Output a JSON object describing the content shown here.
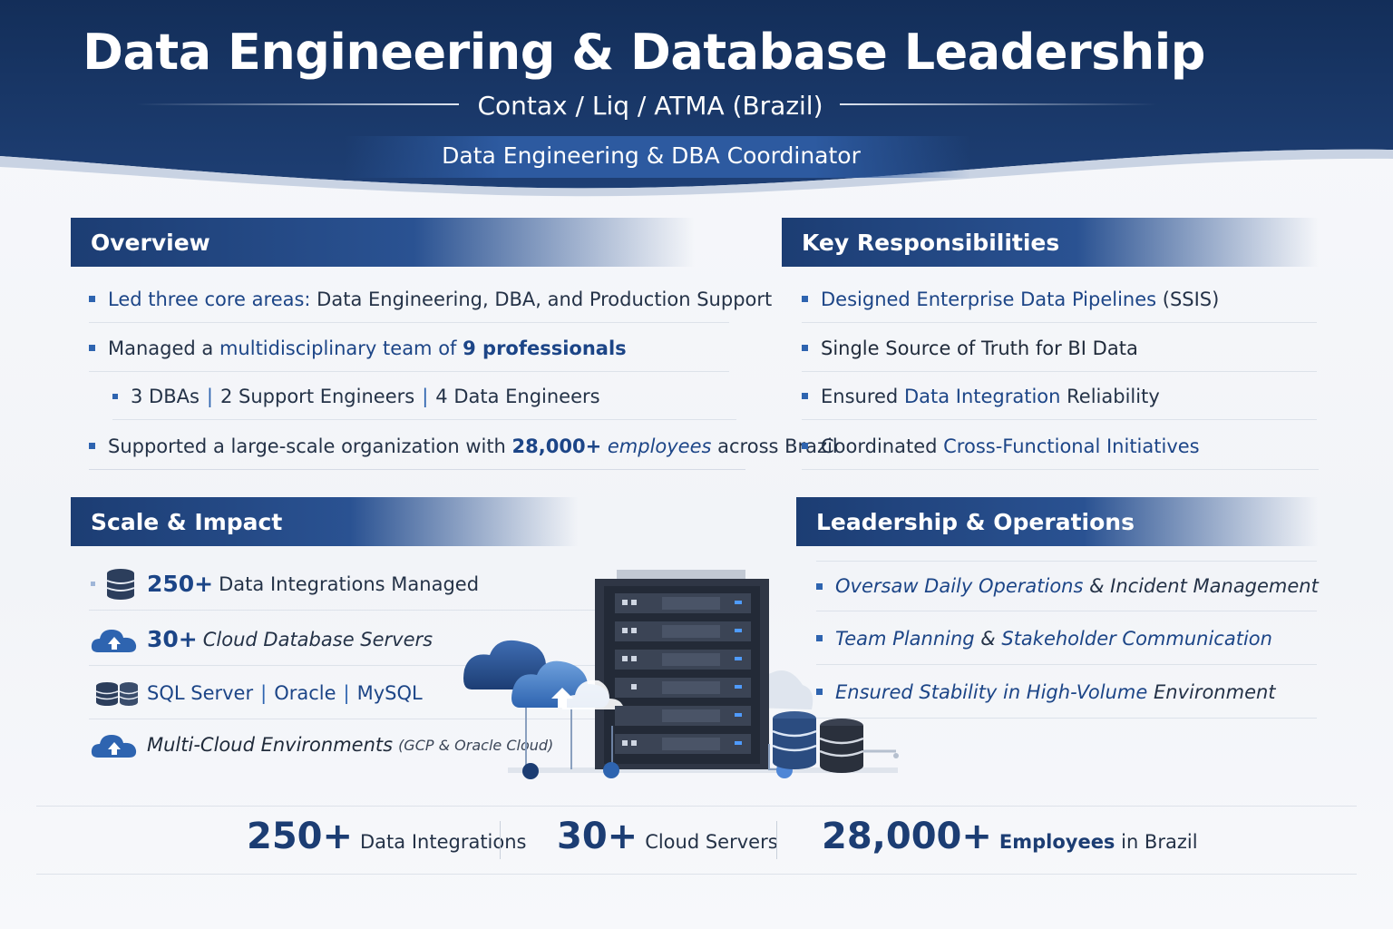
{
  "header": {
    "title": "Data Engineering & Database Leadership",
    "subtitle": "Contax / Liq / ATMA (Brazil)",
    "role": "Data Engineering & DBA Coordinator"
  },
  "overview": {
    "title": "Overview",
    "row1": {
      "lead": "Led three core areas:",
      "rest": " Data Engineering, DBA, and Production Support"
    },
    "row2": {
      "pre": "Managed a ",
      "mid": "multidisciplinary team of ",
      "bold": "9 professionals"
    },
    "row3": {
      "a": "3 DBAs",
      "b": "2 Support Engineers",
      "c": "4 Data Engineers"
    },
    "row4": {
      "pre": "Supported a large-scale organization with ",
      "num": "28,000+",
      "mid": " employees",
      "post": " across Brazil"
    }
  },
  "responsibilities": {
    "title": "Key Responsibilities",
    "items": [
      {
        "bold": "Designed Enterprise Data Pipelines",
        "rest": " (SSIS)"
      },
      {
        "pre": "",
        "bold": "Single Source of Truth for BI Data",
        "rest": ""
      },
      {
        "pre": "Ensured ",
        "bold": "Data Integration",
        "rest": " Reliability"
      },
      {
        "pre": "Coordinated ",
        "bold": "Cross-Functional Initiatives",
        "rest": ""
      }
    ]
  },
  "scale": {
    "title": "Scale & Impact",
    "row1": {
      "num": "250+",
      "text": "Data Integrations Managed"
    },
    "row2": {
      "num": "30+",
      "text": "Cloud Database Servers"
    },
    "row3": {
      "a": "SQL Server",
      "b": "Oracle",
      "c": "MySQL"
    },
    "row4": {
      "text": "Multi-Cloud Environments",
      "sub": "(GCP & Oracle Cloud)"
    }
  },
  "leadership": {
    "title": "Leadership & Operations",
    "items": [
      {
        "bold": "Oversaw Daily Operations",
        "rest": " & Incident Management"
      },
      {
        "bold": "Team Planning",
        "mid": " & ",
        "bold2": "Stakeholder Communication"
      },
      {
        "bold": "Ensured Stability in High-Volume",
        "rest": " Environment"
      }
    ]
  },
  "stats": [
    {
      "num": "250+",
      "label": "Data Integrations"
    },
    {
      "num": "30+",
      "label": "Cloud Servers"
    },
    {
      "num": "28,000+",
      "label_bold": "Employees",
      "label": " in Brazil"
    }
  ],
  "colors": {
    "navy": "#1c3d73",
    "accent": "#2e64b0",
    "text": "#243247"
  },
  "icons": [
    "database-icon",
    "cloud-upload-icon",
    "server-rack-illustration"
  ]
}
